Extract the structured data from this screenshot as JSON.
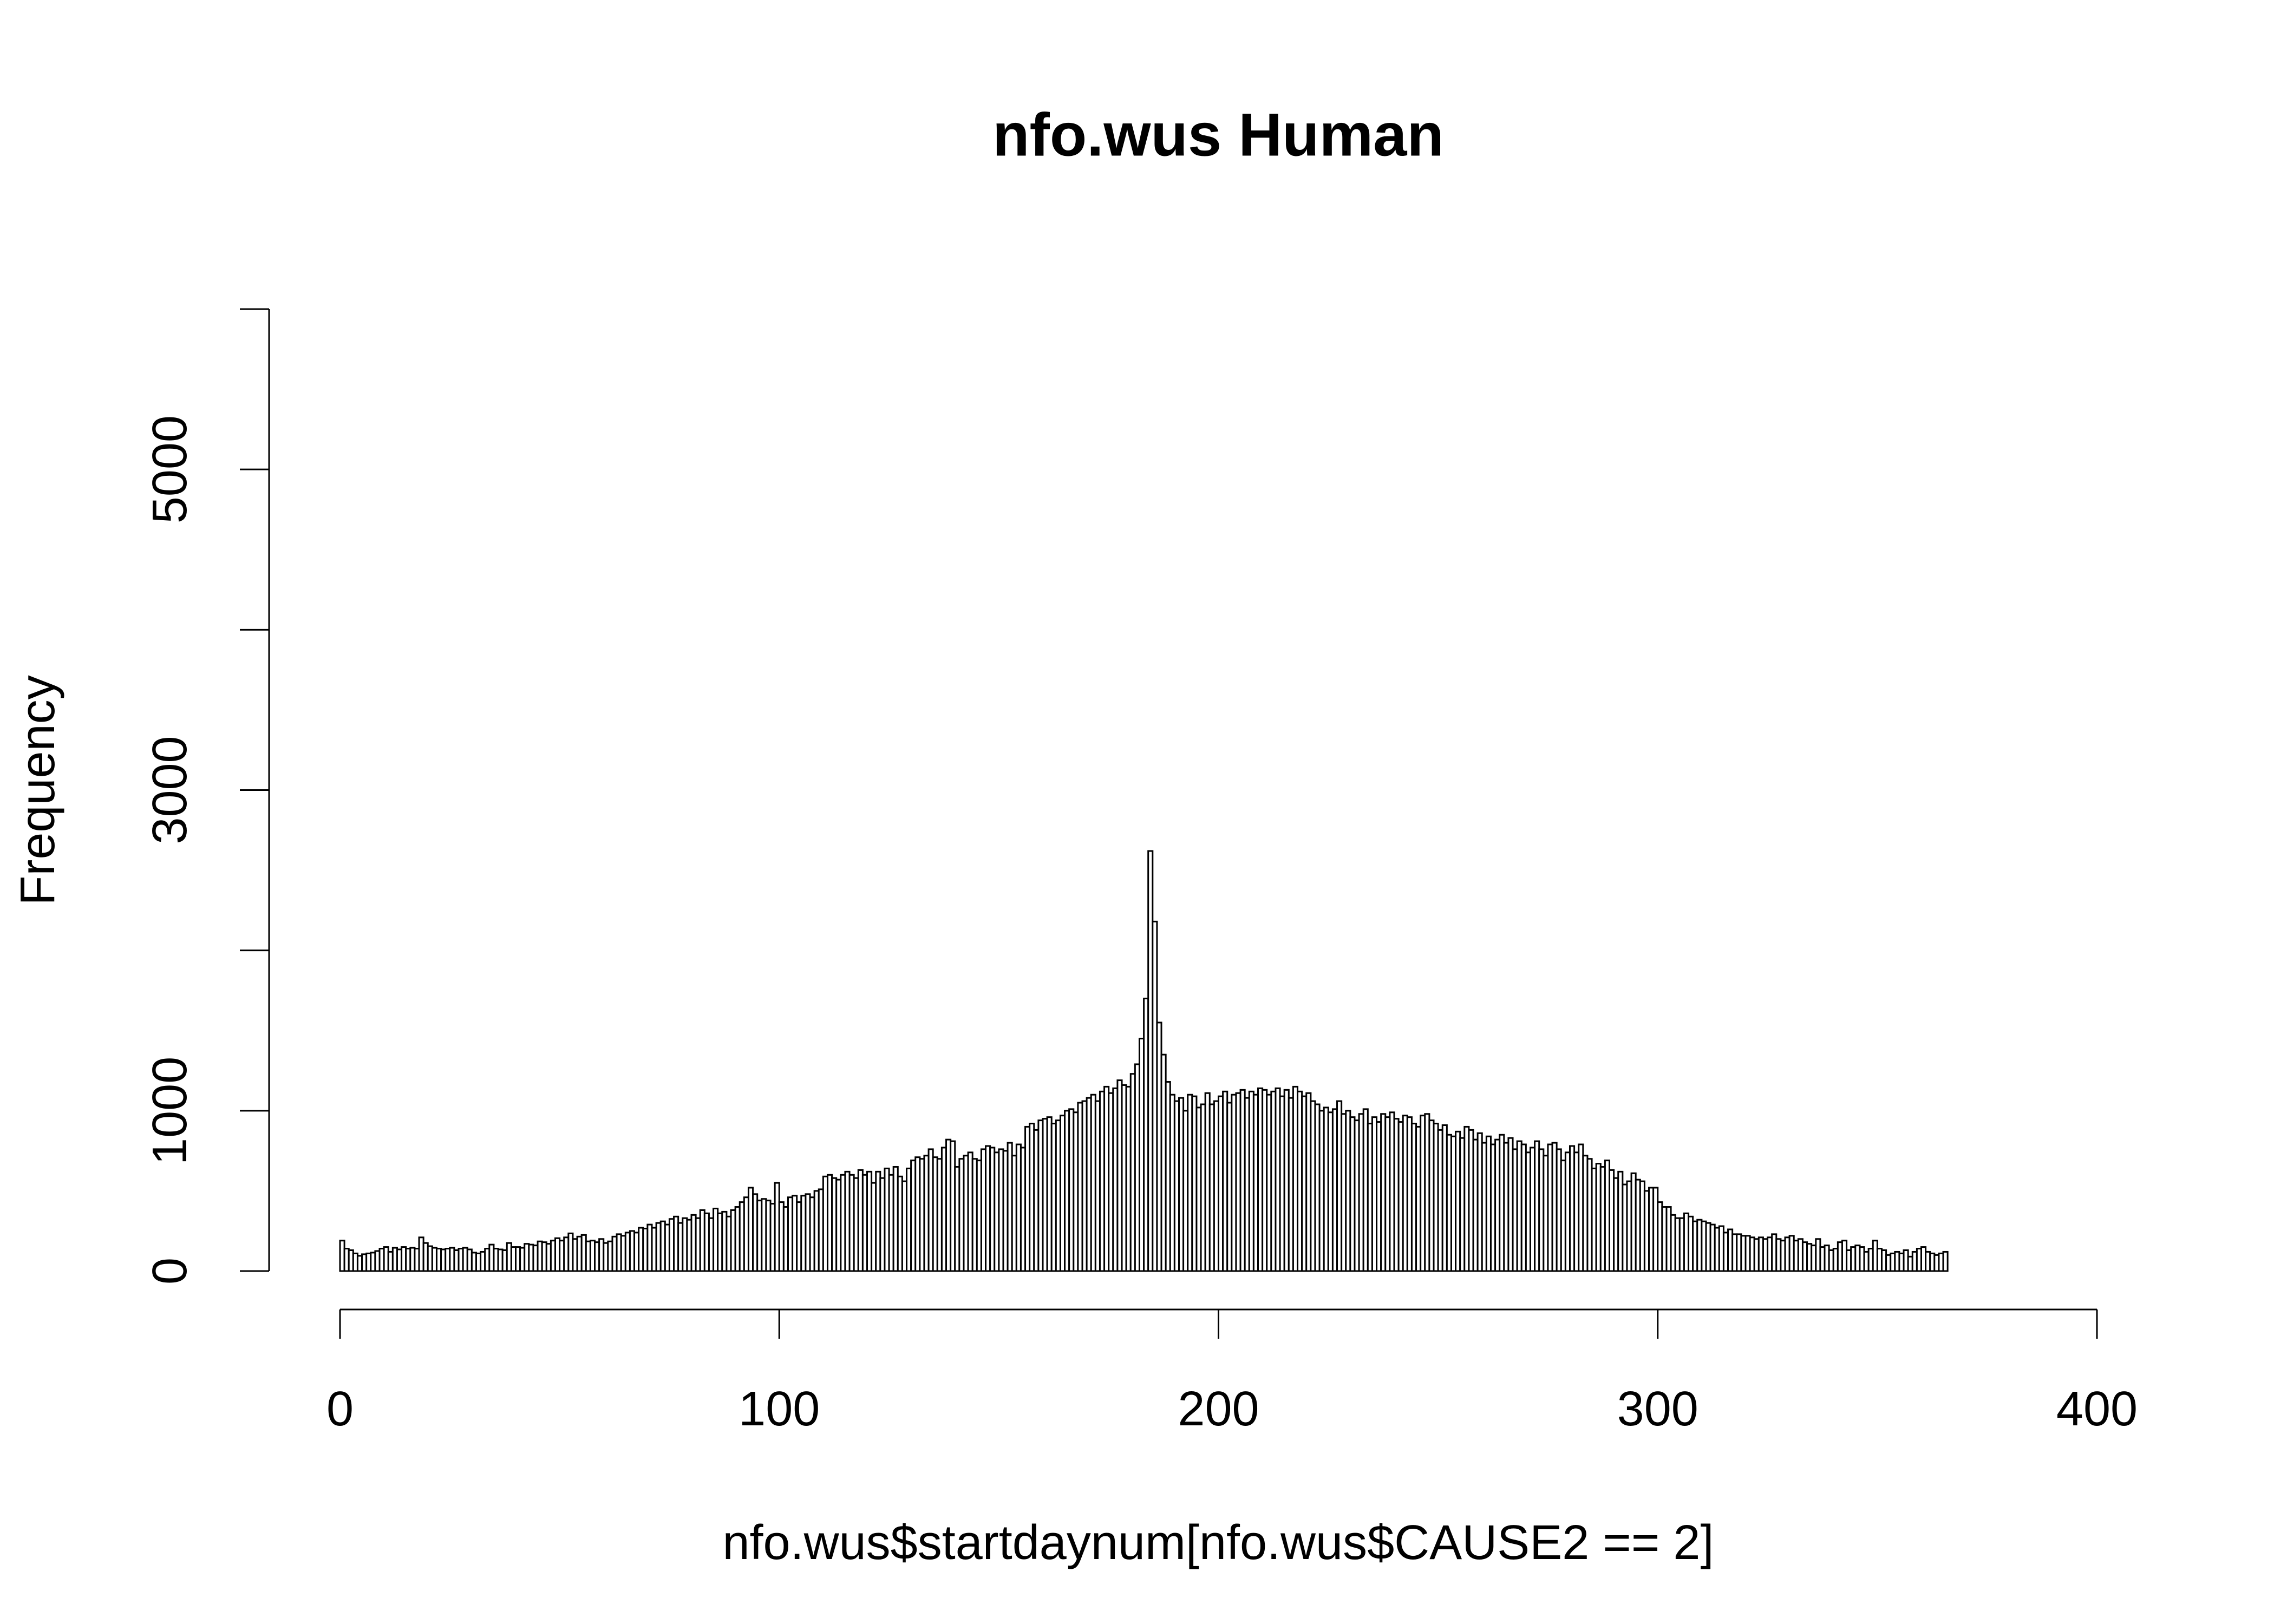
{
  "chart_data": {
    "type": "histogram",
    "title": "nfo.wus Human",
    "xlabel": "nfo.wus$startdaynum[nfo.wus$CAUSE2 == 2]",
    "ylabel": "Frequency",
    "color": "#ffffff",
    "edgecolor": "#000000",
    "xlim": [
      0,
      400
    ],
    "xticks": [
      0,
      100,
      200,
      300,
      400
    ],
    "ylim": [
      0,
      6000
    ],
    "yticks": [
      0,
      1000,
      {
        "value": 2000,
        "label": null
      },
      3000,
      {
        "value": 4000,
        "label": null
      },
      5000,
      {
        "value": 6000,
        "label": null
      }
    ],
    "bins": [
      0,
      1,
      2,
      3,
      4,
      5,
      6,
      7,
      8,
      9,
      10,
      11,
      12,
      13,
      14,
      15,
      16,
      17,
      18,
      19,
      20,
      21,
      22,
      23,
      24,
      25,
      26,
      27,
      28,
      29,
      30,
      31,
      32,
      33,
      34,
      35,
      36,
      37,
      38,
      39,
      40,
      41,
      42,
      43,
      44,
      45,
      46,
      47,
      48,
      49,
      50,
      51,
      52,
      53,
      54,
      55,
      56,
      57,
      58,
      59,
      60,
      61,
      62,
      63,
      64,
      65,
      66,
      67,
      68,
      69,
      70,
      71,
      72,
      73,
      74,
      75,
      76,
      77,
      78,
      79,
      80,
      81,
      82,
      83,
      84,
      85,
      86,
      87,
      88,
      89,
      90,
      91,
      92,
      93,
      94,
      95,
      96,
      97,
      98,
      99,
      100,
      101,
      102,
      103,
      104,
      105,
      106,
      107,
      108,
      109,
      110,
      111,
      112,
      113,
      114,
      115,
      116,
      117,
      118,
      119,
      120,
      121,
      122,
      123,
      124,
      125,
      126,
      127,
      128,
      129,
      130,
      131,
      132,
      133,
      134,
      135,
      136,
      137,
      138,
      139,
      140,
      141,
      142,
      143,
      144,
      145,
      146,
      147,
      148,
      149,
      150,
      151,
      152,
      153,
      154,
      155,
      156,
      157,
      158,
      159,
      160,
      161,
      162,
      163,
      164,
      165,
      166,
      167,
      168,
      169,
      170,
      171,
      172,
      173,
      174,
      175,
      176,
      177,
      178,
      179,
      180,
      181,
      182,
      183,
      184,
      185,
      186,
      187,
      188,
      189,
      190,
      191,
      192,
      193,
      194,
      195,
      196,
      197,
      198,
      199,
      200,
      201,
      202,
      203,
      204,
      205,
      206,
      207,
      208,
      209,
      210,
      211,
      212,
      213,
      214,
      215,
      216,
      217,
      218,
      219,
      220,
      221,
      222,
      223,
      224,
      225,
      226,
      227,
      228,
      229,
      230,
      231,
      232,
      233,
      234,
      235,
      236,
      237,
      238,
      239,
      240,
      241,
      242,
      243,
      244,
      245,
      246,
      247,
      248,
      249,
      250,
      251,
      252,
      253,
      254,
      255,
      256,
      257,
      258,
      259,
      260,
      261,
      262,
      263,
      264,
      265,
      266,
      267,
      268,
      269,
      270,
      271,
      272,
      273,
      274,
      275,
      276,
      277,
      278,
      279,
      280,
      281,
      282,
      283,
      284,
      285,
      286,
      287,
      288,
      289,
      290,
      291,
      292,
      293,
      294,
      295,
      296,
      297,
      298,
      299,
      300,
      301,
      302,
      303,
      304,
      305,
      306,
      307,
      308,
      309,
      310,
      311,
      312,
      313,
      314,
      315,
      316,
      317,
      318,
      319,
      320,
      321,
      322,
      323,
      324,
      325,
      326,
      327,
      328,
      329,
      330,
      331,
      332,
      333,
      334,
      335,
      336,
      337,
      338,
      339,
      340,
      341,
      342,
      343,
      344,
      345,
      346,
      347,
      348,
      349,
      350,
      351,
      352,
      353,
      354,
      355,
      356,
      357,
      358,
      359,
      360,
      361,
      362,
      363,
      364,
      365,
      366
    ],
    "values": [
      190,
      140,
      130,
      110,
      95,
      105,
      110,
      115,
      125,
      140,
      150,
      120,
      145,
      135,
      150,
      140,
      145,
      140,
      210,
      175,
      155,
      145,
      140,
      135,
      140,
      145,
      130,
      140,
      145,
      135,
      115,
      110,
      120,
      140,
      165,
      140,
      135,
      130,
      175,
      150,
      150,
      145,
      170,
      165,
      160,
      185,
      180,
      170,
      190,
      205,
      190,
      210,
      235,
      200,
      215,
      225,
      185,
      190,
      180,
      200,
      175,
      185,
      215,
      230,
      220,
      240,
      250,
      240,
      270,
      265,
      290,
      270,
      300,
      310,
      290,
      325,
      340,
      300,
      330,
      320,
      350,
      330,
      380,
      360,
      330,
      390,
      360,
      370,
      340,
      380,
      400,
      430,
      460,
      520,
      480,
      440,
      450,
      440,
      420,
      550,
      430,
      400,
      460,
      470,
      430,
      470,
      480,
      460,
      500,
      510,
      590,
      600,
      580,
      570,
      600,
      620,
      600,
      580,
      630,
      600,
      620,
      550,
      620,
      580,
      640,
      600,
      650,
      590,
      560,
      640,
      690,
      710,
      700,
      720,
      760,
      710,
      700,
      770,
      820,
      810,
      650,
      700,
      720,
      740,
      700,
      690,
      760,
      780,
      770,
      740,
      760,
      750,
      800,
      720,
      790,
      770,
      900,
      920,
      880,
      940,
      950,
      960,
      920,
      940,
      970,
      1000,
      1010,
      990,
      1050,
      1060,
      1080,
      1100,
      1060,
      1120,
      1150,
      1110,
      1140,
      1190,
      1160,
      1150,
      1230,
      1290,
      1450,
      1700,
      2620,
      2180,
      1550,
      1350,
      1180,
      1100,
      1060,
      1080,
      1000,
      1100,
      1090,
      1020,
      1040,
      1110,
      1040,
      1060,
      1090,
      1120,
      1050,
      1100,
      1110,
      1130,
      1080,
      1120,
      1100,
      1140,
      1130,
      1100,
      1120,
      1140,
      1090,
      1130,
      1080,
      1150,
      1120,
      1090,
      1110,
      1060,
      1040,
      1000,
      1020,
      990,
      1010,
      1060,
      980,
      1000,
      960,
      940,
      980,
      1010,
      920,
      960,
      930,
      980,
      960,
      990,
      950,
      930,
      970,
      960,
      920,
      900,
      970,
      980,
      940,
      920,
      880,
      910,
      850,
      840,
      870,
      830,
      900,
      880,
      820,
      860,
      800,
      840,
      790,
      820,
      850,
      800,
      830,
      760,
      810,
      790,
      740,
      770,
      810,
      760,
      720,
      790,
      800,
      760,
      690,
      740,
      780,
      740,
      790,
      720,
      700,
      640,
      670,
      650,
      690,
      630,
      580,
      620,
      540,
      560,
      610,
      570,
      560,
      500,
      520,
      520,
      430,
      400,
      400,
      350,
      330,
      330,
      360,
      340,
      310,
      320,
      310,
      300,
      290,
      270,
      280,
      240,
      260,
      230,
      230,
      220,
      220,
      210,
      200,
      210,
      200,
      210,
      230,
      200,
      190,
      210,
      220,
      190,
      200,
      180,
      170,
      160,
      200,
      150,
      160,
      130,
      140,
      180,
      190,
      130,
      150,
      160,
      150,
      120,
      140,
      190,
      140,
      130,
      100,
      110,
      120,
      110,
      130,
      90,
      120,
      140,
      150,
      120,
      110,
      100,
      110,
      120
    ]
  }
}
